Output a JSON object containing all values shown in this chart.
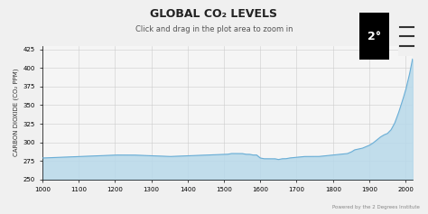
{
  "title": "GLOBAL CO₂ LEVELS",
  "subtitle": "Click and drag in the plot area to zoom in",
  "ylabel": "CARBON DIOXIDE (CO₂ PPM)",
  "xlim": [
    1000,
    2020
  ],
  "ylim": [
    250,
    430
  ],
  "yticks": [
    250,
    275,
    300,
    325,
    350,
    375,
    400,
    425
  ],
  "xticks": [
    1000,
    1100,
    1200,
    1300,
    1400,
    1500,
    1600,
    1700,
    1800,
    1900,
    2000
  ],
  "fill_color": "#b8d9ea",
  "line_color": "#6aaed6",
  "bg_color": "#f5f5f5",
  "grid_color": "#cccccc",
  "footer_text": "Powered by the 2 Degrees Institute",
  "title_fontsize": 9,
  "subtitle_fontsize": 6,
  "ylabel_fontsize": 5,
  "tick_fontsize": 5
}
